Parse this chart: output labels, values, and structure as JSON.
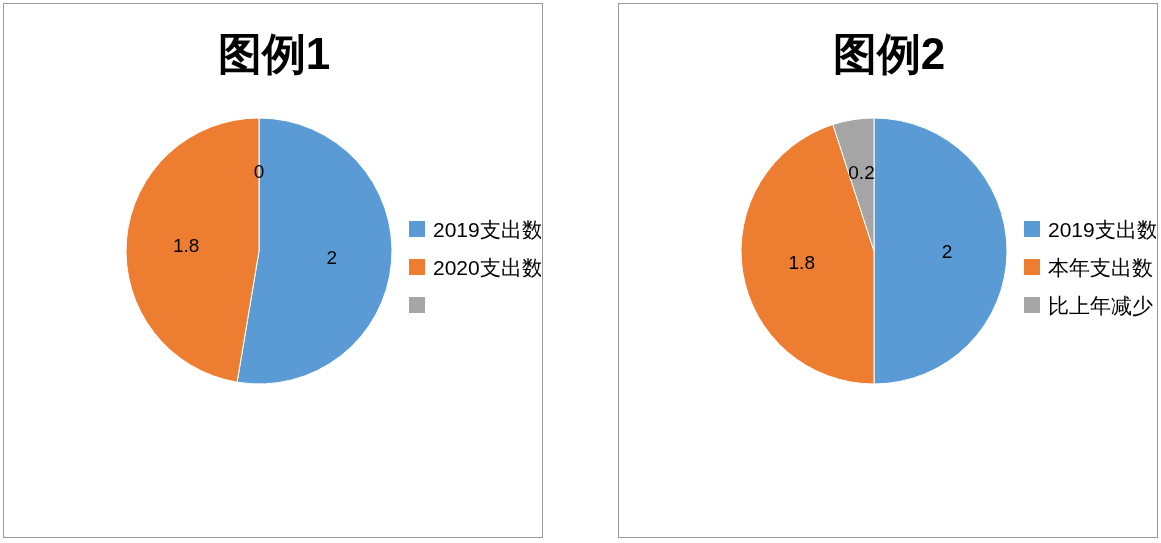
{
  "chart_data": [
    {
      "type": "pie",
      "title": "图例1",
      "categories": [
        "2019支出数",
        "2020支出数",
        null
      ],
      "values": [
        2,
        1.8,
        0
      ],
      "colors": [
        "#5b9bd5",
        "#ed7d31",
        "#a5a5a5"
      ],
      "value_labels": [
        "2",
        "1.8",
        "0"
      ],
      "legend": "right"
    },
    {
      "type": "pie",
      "title": "图例2",
      "categories": [
        "2019支出数",
        "本年支出数",
        "比上年减少"
      ],
      "values": [
        2,
        1.8,
        0.2
      ],
      "colors": [
        "#5b9bd5",
        "#ed7d31",
        "#a5a5a5"
      ],
      "data_labels": true,
      "legend": "right"
    }
  ]
}
